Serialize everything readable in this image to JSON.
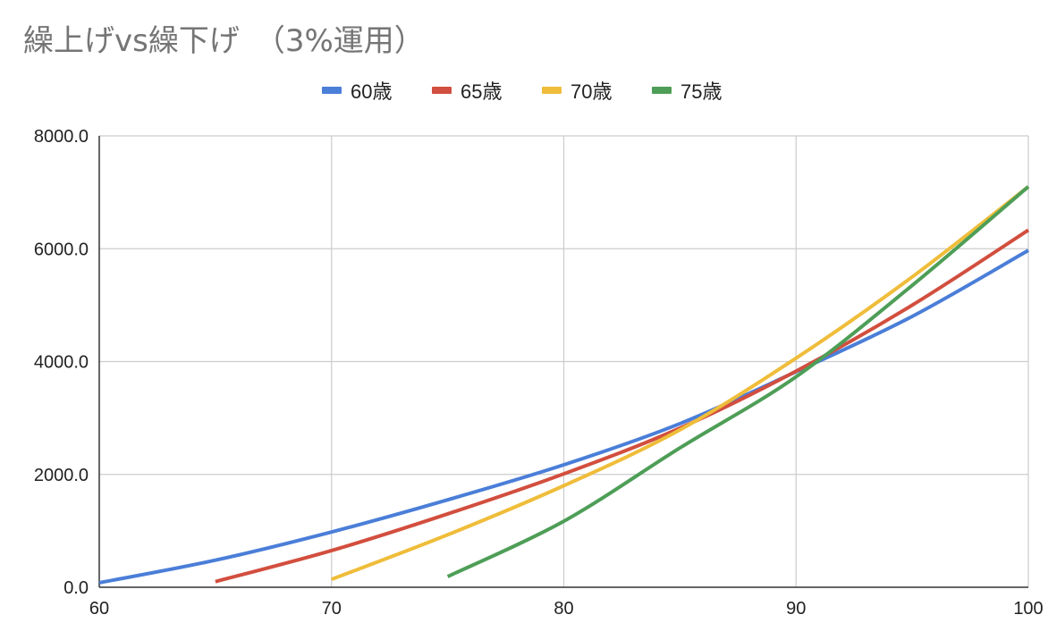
{
  "chart_data": {
    "type": "line",
    "title": "繰上げvs繰下げ　（3%運用）",
    "xlabel": "",
    "ylabel": "",
    "xlim": [
      60,
      100
    ],
    "ylim": [
      0,
      8000
    ],
    "x_ticks": [
      "60",
      "70",
      "80",
      "90",
      "100"
    ],
    "y_ticks": [
      "0.0",
      "2000.0",
      "4000.0",
      "6000.0",
      "8000.0"
    ],
    "grid": true,
    "legend_position": "top",
    "series": [
      {
        "name": "60歳",
        "color": "#4a7ed8",
        "x": [
          60,
          65,
          70,
          75,
          80,
          85,
          90,
          95,
          100
        ],
        "y": [
          80,
          480,
          980,
          1550,
          2170,
          2900,
          3820,
          4800,
          5970
        ]
      },
      {
        "name": "65歳",
        "color": "#d24e3e",
        "x": [
          65,
          70,
          75,
          80,
          85,
          90,
          95,
          100
        ],
        "y": [
          100,
          650,
          1300,
          2010,
          2820,
          3830,
          5000,
          6330
        ]
      },
      {
        "name": "70歳",
        "color": "#efbd3a",
        "x": [
          70,
          75,
          80,
          85,
          90,
          95,
          100
        ],
        "y": [
          140,
          930,
          1800,
          2790,
          4060,
          5500,
          7100
        ]
      },
      {
        "name": "75歳",
        "color": "#4e9e57",
        "x": [
          75,
          80,
          85,
          90,
          95,
          100
        ],
        "y": [
          190,
          1170,
          2470,
          3730,
          5350,
          7100
        ]
      }
    ]
  }
}
